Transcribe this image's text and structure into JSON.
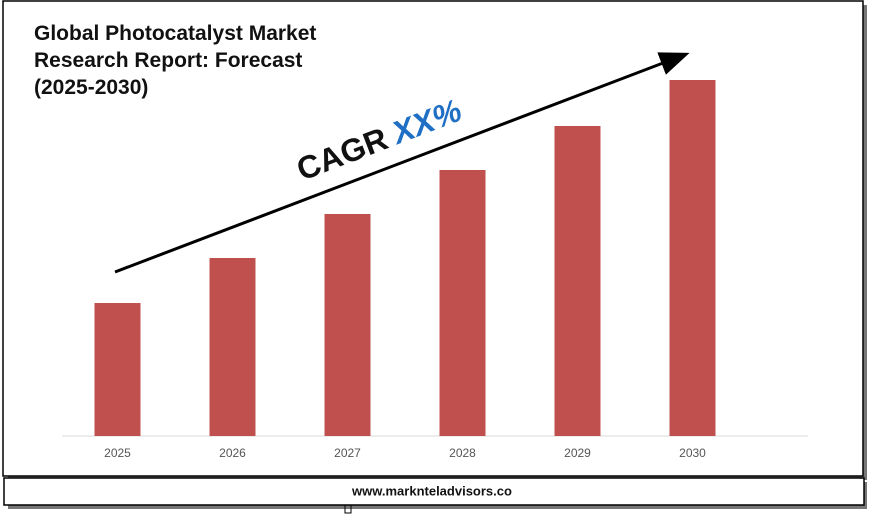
{
  "chart_data": {
    "type": "bar",
    "title": "Global Photocatalyst Market Research Report: Forecast (2025-2030)",
    "annotation": {
      "label": "CAGR",
      "value": "XX%"
    },
    "categories": [
      "2025",
      "2026",
      "2027",
      "2028",
      "2029",
      "2030"
    ],
    "values": [
      133,
      178,
      222,
      266,
      310,
      356
    ],
    "color": "#c0504d",
    "ylim": [
      0,
      380
    ],
    "footer": "www.marknteladvisors.co"
  }
}
